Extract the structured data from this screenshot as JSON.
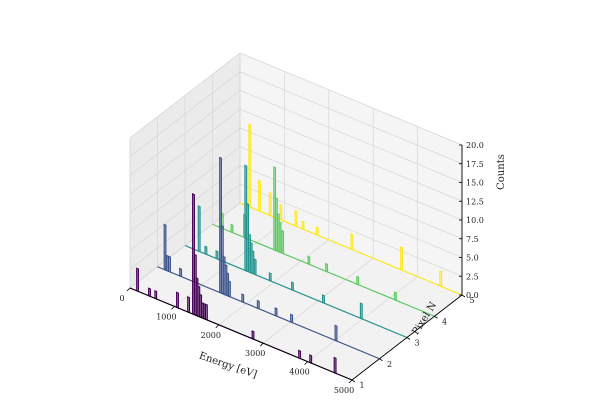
{
  "chart_data": {
    "type": "3d-bar-histogram",
    "xlabel": "Energy [eV]",
    "ylabel": "Pixel N",
    "zlabel": "Counts",
    "xlim": [
      0,
      5000
    ],
    "ylim": [
      1,
      5
    ],
    "zlim": [
      0,
      20
    ],
    "x_ticks": [
      "0",
      "1000",
      "2000",
      "3000",
      "4000",
      "5000"
    ],
    "y_ticks": [
      "1",
      "2",
      "3",
      "4",
      "5"
    ],
    "z_ticks": [
      "0.0",
      "2.5",
      "5.0",
      "7.5",
      "10.0",
      "12.5",
      "15.0",
      "17.5",
      "20.0"
    ],
    "grid": true,
    "colors": [
      "#440154",
      "#3b528b",
      "#21918c",
      "#5ec962",
      "#fde725"
    ],
    "series": [
      {
        "pixel": 1,
        "bins": [
          [
            150,
            3
          ],
          [
            420,
            1
          ],
          [
            560,
            1
          ],
          [
            1050,
            2
          ],
          [
            1300,
            2
          ],
          [
            1410,
            16
          ],
          [
            1450,
            8
          ],
          [
            1490,
            5
          ],
          [
            1530,
            4
          ],
          [
            1570,
            3
          ],
          [
            1610,
            2
          ],
          [
            1650,
            2
          ],
          [
            1700,
            2
          ],
          [
            2750,
            1
          ],
          [
            3800,
            1
          ],
          [
            4050,
            1
          ],
          [
            4600,
            2
          ]
        ]
      },
      {
        "pixel": 2,
        "bins": [
          [
            150,
            6
          ],
          [
            200,
            2
          ],
          [
            250,
            2
          ],
          [
            500,
            1
          ],
          [
            1400,
            18
          ],
          [
            1440,
            9
          ],
          [
            1480,
            5
          ],
          [
            1520,
            4
          ],
          [
            1560,
            3
          ],
          [
            1600,
            2
          ],
          [
            1900,
            1
          ],
          [
            2250,
            1
          ],
          [
            2650,
            1
          ],
          [
            3000,
            1
          ],
          [
            4000,
            2
          ]
        ]
      },
      {
        "pixel": 3,
        "bins": [
          [
            300,
            6
          ],
          [
            450,
            1
          ],
          [
            700,
            1
          ],
          [
            1350,
            14
          ],
          [
            1390,
            9
          ],
          [
            1430,
            5
          ],
          [
            1470,
            4
          ],
          [
            1510,
            3
          ],
          [
            1560,
            2
          ],
          [
            1900,
            1
          ],
          [
            2400,
            1
          ],
          [
            3100,
            1
          ],
          [
            3950,
            2
          ]
        ]
      },
      {
        "pixel": 4,
        "bins": [
          [
            200,
            2
          ],
          [
            420,
            1
          ],
          [
            700,
            3
          ],
          [
            1380,
            11
          ],
          [
            1420,
            7
          ],
          [
            1460,
            5
          ],
          [
            1500,
            4
          ],
          [
            1560,
            3
          ],
          [
            2150,
            1
          ],
          [
            2550,
            1
          ],
          [
            3250,
            1
          ],
          [
            4100,
            1
          ]
        ]
      },
      {
        "pixel": 5,
        "bins": [
          [
            200,
            11
          ],
          [
            420,
            4
          ],
          [
            660,
            3
          ],
          [
            900,
            2
          ],
          [
            1240,
            2
          ],
          [
            1400,
            1
          ],
          [
            1720,
            1
          ],
          [
            2500,
            2
          ],
          [
            3620,
            3
          ],
          [
            4500,
            2
          ]
        ]
      }
    ]
  }
}
